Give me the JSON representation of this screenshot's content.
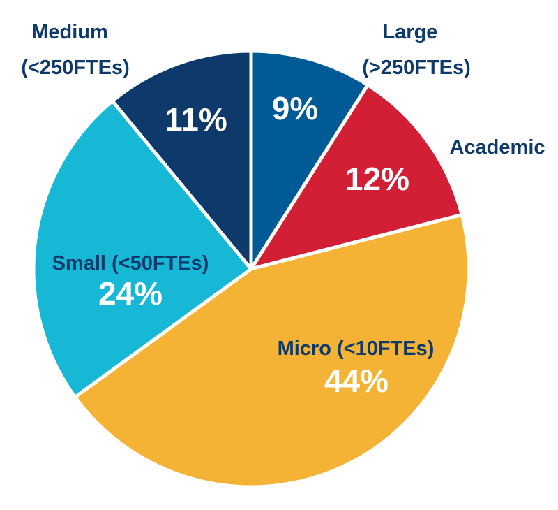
{
  "chart_data": {
    "type": "pie",
    "title": "",
    "slices": [
      {
        "key": "large",
        "label_lines": [
          "Large",
          "(>250FTEs)"
        ],
        "value": 9,
        "value_label": "9%",
        "color": "#005a96",
        "label_inside": false
      },
      {
        "key": "academic",
        "label_lines": [
          "Academic"
        ],
        "value": 12,
        "value_label": "12%",
        "color": "#d21f35",
        "label_inside": false
      },
      {
        "key": "micro",
        "label_lines": [
          "Micro (<10FTEs)"
        ],
        "value": 44,
        "value_label": "44%",
        "color": "#f5b335",
        "label_inside": true
      },
      {
        "key": "small",
        "label_lines": [
          "Small (<50FTEs)"
        ],
        "value": 24,
        "value_label": "24%",
        "color": "#17b7d6",
        "label_inside": true
      },
      {
        "key": "medium",
        "label_lines": [
          "Medium",
          "(<250FTEs)"
        ],
        "value": 11,
        "value_label": "11%",
        "color": "#0d3a6b",
        "label_inside": false
      }
    ]
  }
}
